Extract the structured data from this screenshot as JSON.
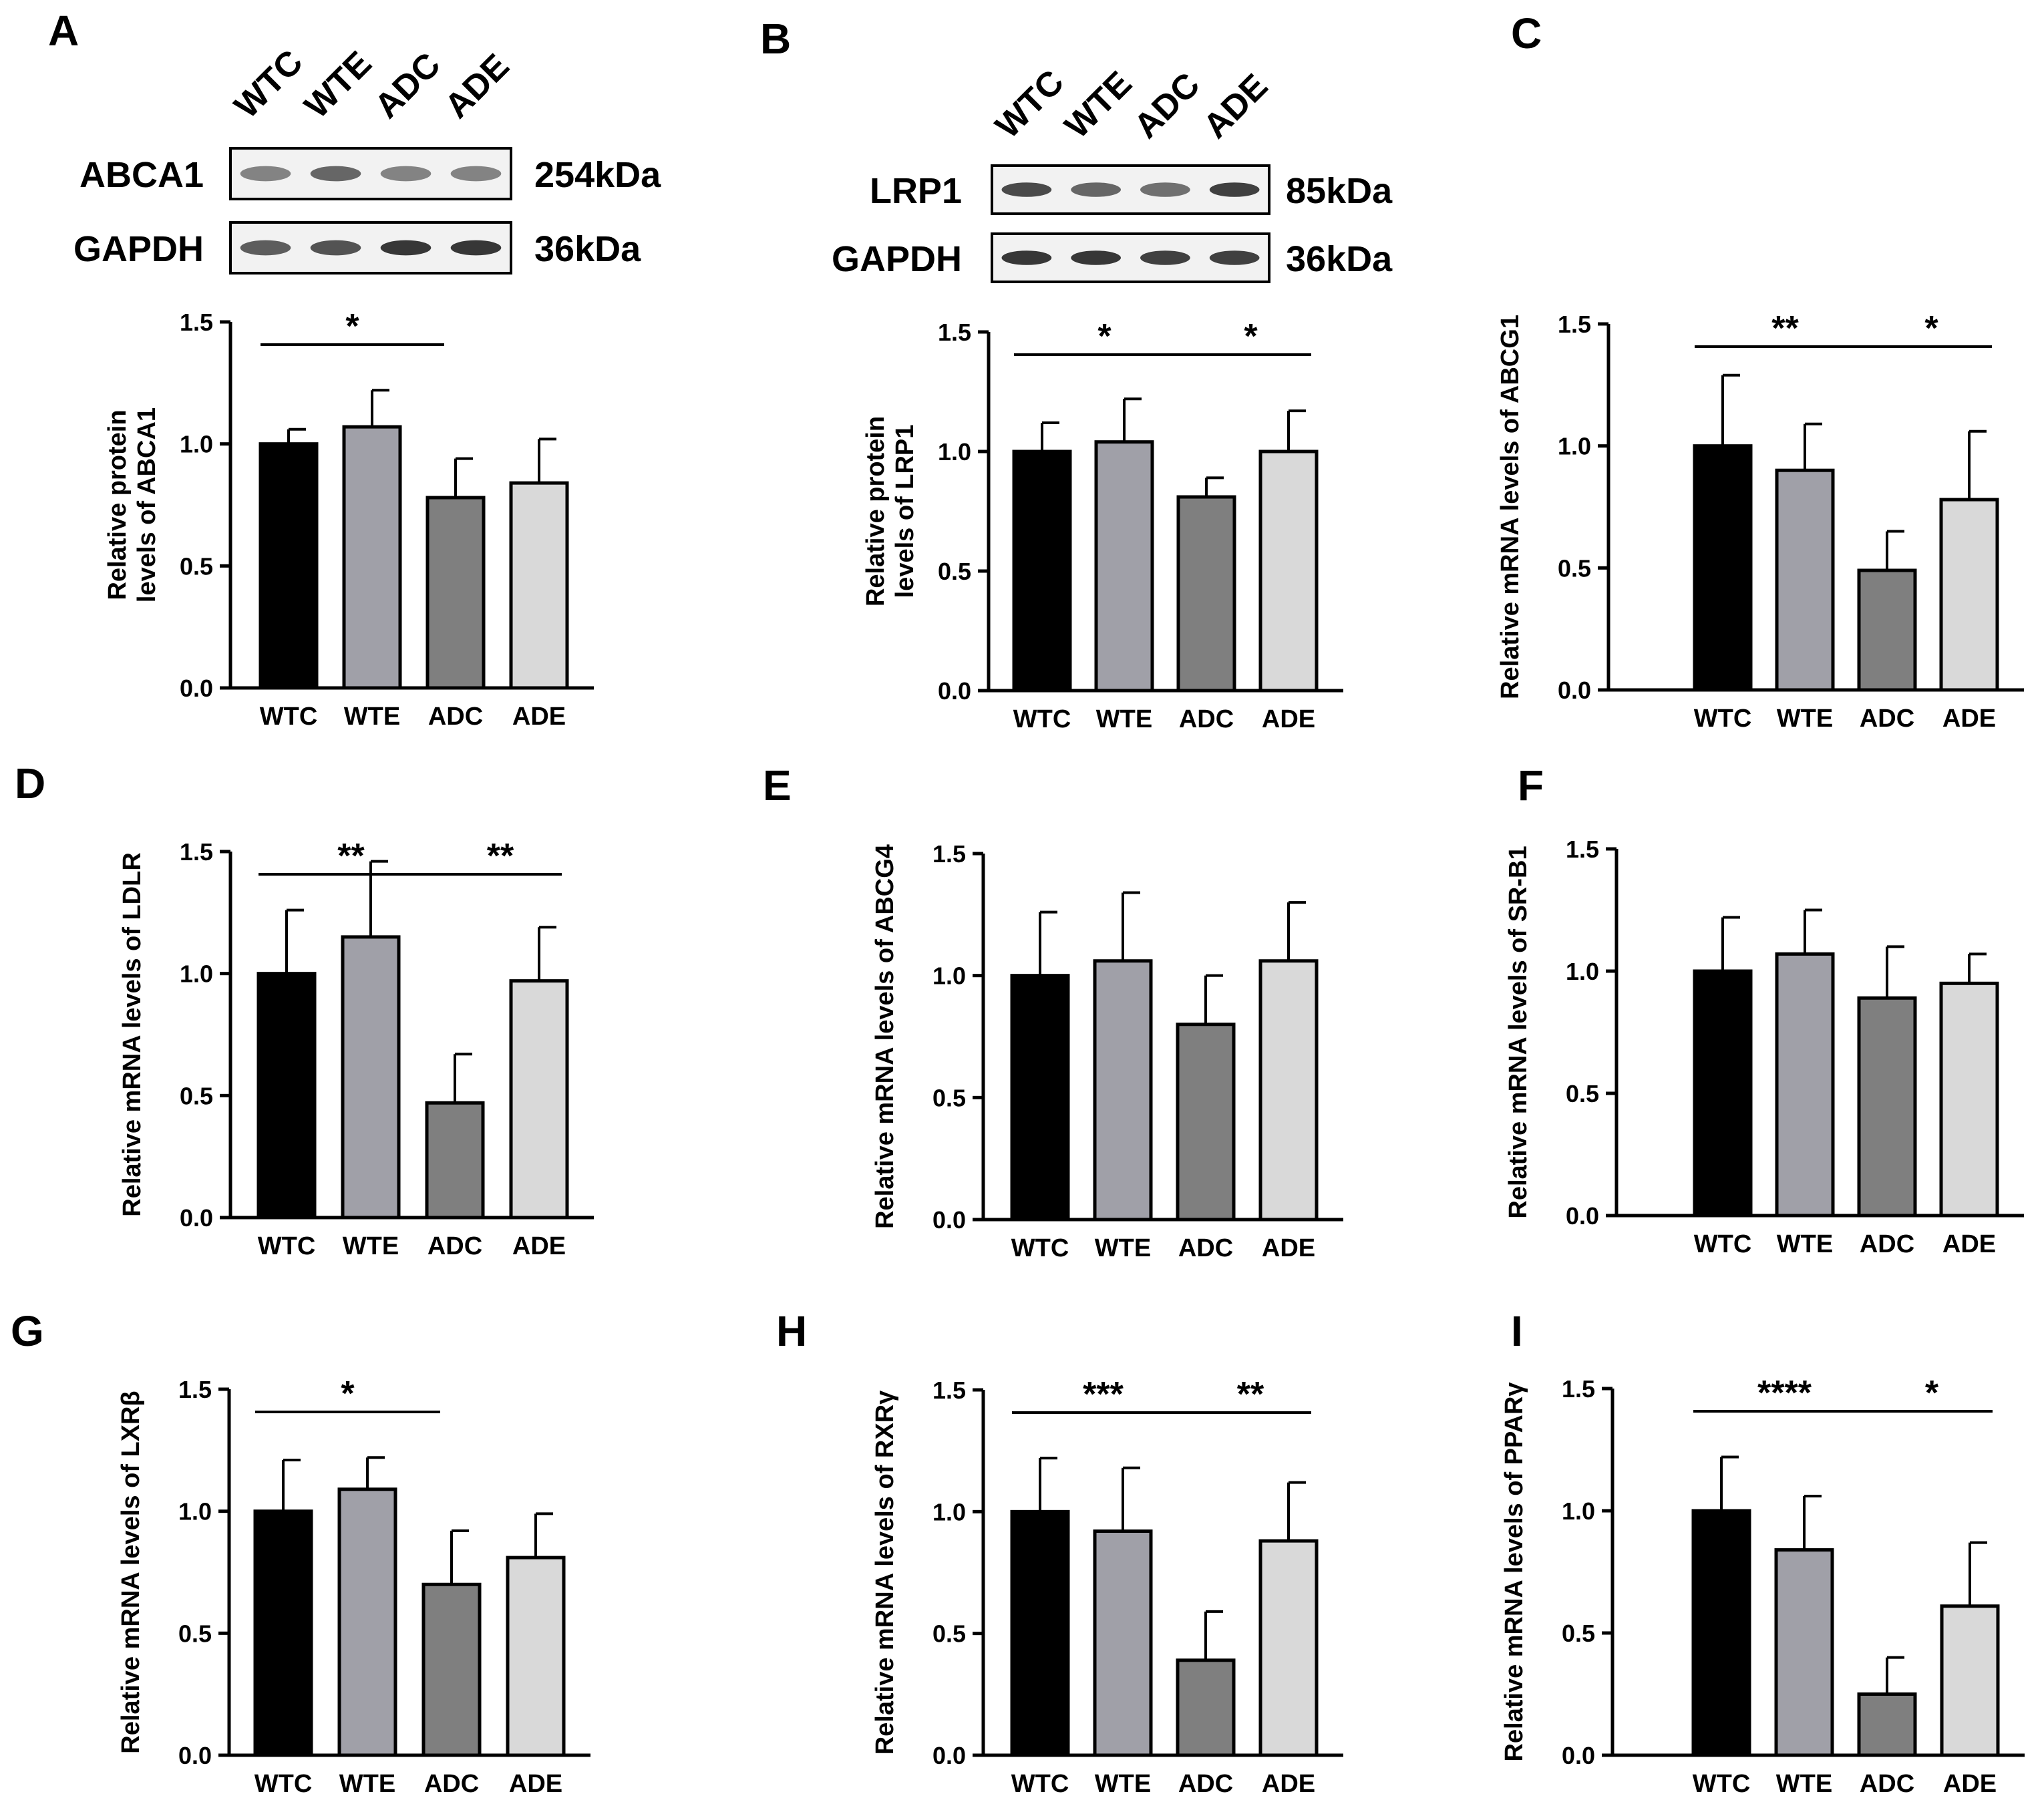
{
  "figure_type": "bar chart panels with western blots",
  "colors": {
    "WTC": "#000000",
    "WTE": "#a0a0a8",
    "ADC": "#7f7f7f",
    "ADE": "#d9d9d9",
    "axis": "#000000",
    "blot_band": "#333333"
  },
  "blots": {
    "A": {
      "lanes": [
        "WTC",
        "WTE",
        "ADC",
        "ADE"
      ],
      "rows": [
        {
          "label": "ABCA1",
          "size": "254kDa",
          "intensity": [
            0.55,
            0.7,
            0.55,
            0.55
          ]
        },
        {
          "label": "GAPDH",
          "size": "36kDa",
          "intensity": [
            0.75,
            0.8,
            0.95,
            0.95
          ]
        }
      ]
    },
    "B": {
      "lanes": [
        "WTC",
        "WTE",
        "ADC",
        "ADE"
      ],
      "rows": [
        {
          "label": "LRP1",
          "size": "85kDa",
          "intensity": [
            0.85,
            0.7,
            0.65,
            0.9
          ]
        },
        {
          "label": "GAPDH",
          "size": "36kDa",
          "intensity": [
            0.95,
            0.95,
            0.9,
            0.9
          ]
        }
      ]
    }
  },
  "chart_data": [
    {
      "panel": "A",
      "type": "bar",
      "categories": [
        "WTC",
        "WTE",
        "ADC",
        "ADE"
      ],
      "values": [
        1.0,
        1.07,
        0.78,
        0.84
      ],
      "errors": [
        0.06,
        0.15,
        0.16,
        0.18
      ],
      "ylabel_lines": [
        "Relative protein",
        "levels of ABCA1"
      ],
      "ylim": [
        0,
        1.5
      ],
      "yticks": [
        "0.0",
        "0.5",
        "1.0",
        "1.5"
      ],
      "brackets": [
        {
          "from": 0,
          "to": 2,
          "label": "*"
        }
      ]
    },
    {
      "panel": "B",
      "type": "bar",
      "categories": [
        "WTC",
        "WTE",
        "ADC",
        "ADE"
      ],
      "values": [
        1.0,
        1.04,
        0.81,
        1.0
      ],
      "errors": [
        0.12,
        0.18,
        0.08,
        0.17
      ],
      "ylabel_lines": [
        "Relative protein",
        "levels of LRP1"
      ],
      "ylim": [
        0,
        1.5
      ],
      "yticks": [
        "0.0",
        "0.5",
        "1.0",
        "1.5"
      ],
      "brackets": [
        {
          "from": 0,
          "to": 2,
          "label": "*"
        },
        {
          "from": 2,
          "to": 3,
          "label": "*"
        }
      ]
    },
    {
      "panel": "C",
      "type": "bar",
      "categories": [
        "WTC",
        "WTE",
        "ADC",
        "ADE"
      ],
      "values": [
        1.0,
        0.9,
        0.49,
        0.78
      ],
      "errors": [
        0.29,
        0.19,
        0.16,
        0.28
      ],
      "ylabel_lines": [
        "Relative mRNA levels of ABCG1"
      ],
      "ylim": [
        0,
        1.5
      ],
      "yticks": [
        "0.0",
        "0.5",
        "1.0",
        "1.5"
      ],
      "brackets": [
        {
          "from": 0,
          "to": 2,
          "label": "**"
        },
        {
          "from": 2,
          "to": 3,
          "label": "*"
        }
      ]
    },
    {
      "panel": "D",
      "type": "bar",
      "categories": [
        "WTC",
        "WTE",
        "ADC",
        "ADE"
      ],
      "values": [
        1.0,
        1.15,
        0.47,
        0.97
      ],
      "errors": [
        0.26,
        0.31,
        0.2,
        0.22
      ],
      "ylabel_lines": [
        "Relative mRNA levels of LDLR"
      ],
      "ylim": [
        0,
        1.5
      ],
      "yticks": [
        "0.0",
        "0.5",
        "1.0",
        "1.5"
      ],
      "brackets": [
        {
          "from": 0,
          "to": 2,
          "label": "**"
        },
        {
          "from": 2,
          "to": 3,
          "label": "**"
        }
      ]
    },
    {
      "panel": "E",
      "type": "bar",
      "categories": [
        "WTC",
        "WTE",
        "ADC",
        "ADE"
      ],
      "values": [
        1.0,
        1.06,
        0.8,
        1.06
      ],
      "errors": [
        0.26,
        0.28,
        0.2,
        0.24
      ],
      "ylabel_lines": [
        "Relative mRNA levels of ABCG4"
      ],
      "ylim": [
        0,
        1.5
      ],
      "yticks": [
        "0.0",
        "0.5",
        "1.0",
        "1.5"
      ],
      "brackets": []
    },
    {
      "panel": "F",
      "type": "bar",
      "categories": [
        "WTC",
        "WTE",
        "ADC",
        "ADE"
      ],
      "values": [
        1.0,
        1.07,
        0.89,
        0.95
      ],
      "errors": [
        0.22,
        0.18,
        0.21,
        0.12
      ],
      "ylabel_lines": [
        "Relative mRNA levels of SR-B1"
      ],
      "ylim": [
        0,
        1.5
      ],
      "yticks": [
        "0.0",
        "0.5",
        "1.0",
        "1.5"
      ],
      "brackets": []
    },
    {
      "panel": "G",
      "type": "bar",
      "categories": [
        "WTC",
        "WTE",
        "ADC",
        "ADE"
      ],
      "values": [
        1.0,
        1.09,
        0.7,
        0.81
      ],
      "errors": [
        0.21,
        0.13,
        0.22,
        0.18
      ],
      "ylabel_lines": [
        "Relative mRNA levels of LXRβ"
      ],
      "ylim": [
        0,
        1.5
      ],
      "yticks": [
        "0.0",
        "0.5",
        "1.0",
        "1.5"
      ],
      "brackets": [
        {
          "from": 0,
          "to": 2,
          "label": "*"
        }
      ]
    },
    {
      "panel": "H",
      "type": "bar",
      "categories": [
        "WTC",
        "WTE",
        "ADC",
        "ADE"
      ],
      "values": [
        1.0,
        0.92,
        0.39,
        0.88
      ],
      "errors": [
        0.22,
        0.26,
        0.2,
        0.24
      ],
      "ylabel_lines": [
        "Relative mRNA levels of RXRγ"
      ],
      "ylim": [
        0,
        1.5
      ],
      "yticks": [
        "0.0",
        "0.5",
        "1.0",
        "1.5"
      ],
      "brackets": [
        {
          "from": 0,
          "to": 2,
          "label": "***"
        },
        {
          "from": 2,
          "to": 3,
          "label": "**"
        }
      ]
    },
    {
      "panel": "I",
      "type": "bar",
      "categories": [
        "WTC",
        "WTE",
        "ADC",
        "ADE"
      ],
      "values": [
        1.0,
        0.84,
        0.25,
        0.61
      ],
      "errors": [
        0.22,
        0.22,
        0.15,
        0.26
      ],
      "ylabel_lines": [
        "Relative mRNA levels of PPARγ"
      ],
      "ylim": [
        0,
        1.5
      ],
      "yticks": [
        "0.0",
        "0.5",
        "1.0",
        "1.5"
      ],
      "brackets": [
        {
          "from": 0,
          "to": 2,
          "label": "****"
        },
        {
          "from": 2,
          "to": 3,
          "label": "*"
        }
      ]
    }
  ]
}
